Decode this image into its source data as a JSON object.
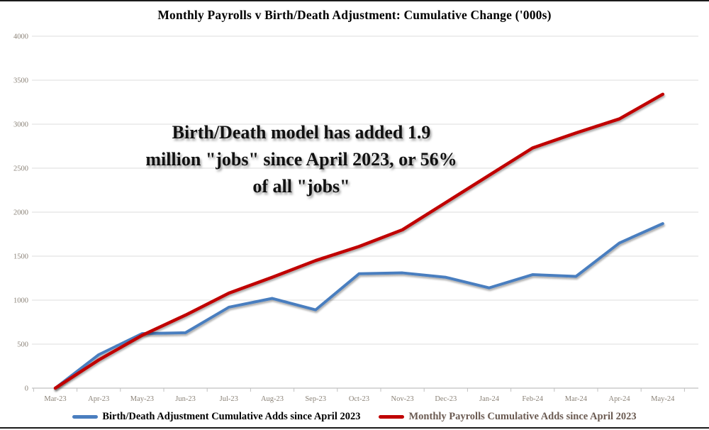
{
  "page": {
    "title": "Monthly Payrolls v Birth/Death Adjustment: Cumulative Change ('000s)"
  },
  "annotation": {
    "line1": "Birth/Death model has added 1.9",
    "line2": "million \"jobs\" since April 2023, or 56%",
    "line3": "of all \"jobs\""
  },
  "legend": {
    "items": [
      {
        "label": "Birth/Death Adjustment Cumulative Adds since April 2023",
        "color": "#4a7ebf"
      },
      {
        "label": "Monthly Payrolls Cumulative Adds since April 2023",
        "color": "#c00000"
      }
    ]
  },
  "chart_data": {
    "type": "line",
    "title": "Monthly Payrolls v Birth/Death Adjustment: Cumulative Change ('000s)",
    "categories": [
      "Mar-23",
      "Apr-23",
      "May-23",
      "Jun-23",
      "Jul-23",
      "Aug-23",
      "Sep-23",
      "Oct-23",
      "Nov-23",
      "Dec-23",
      "Jan-24",
      "Feb-24",
      "Mar-24",
      "Apr-24",
      "May-24"
    ],
    "series": [
      {
        "name": "Birth/Death Adjustment Cumulative Adds since April 2023",
        "color": "#4a7ebf",
        "values": [
          0,
          380,
          620,
          630,
          920,
          1020,
          890,
          1300,
          1310,
          1260,
          1140,
          1290,
          1270,
          1650,
          1870
        ]
      },
      {
        "name": "Monthly Payrolls Cumulative Adds since April 2023",
        "color": "#c00000",
        "values": [
          0,
          320,
          600,
          830,
          1080,
          1260,
          1450,
          1610,
          1800,
          2110,
          2420,
          2730,
          2900,
          3060,
          3340
        ]
      }
    ],
    "xlabel": "",
    "ylabel": "",
    "ylim": [
      0,
      4000
    ],
    "yticks": [
      0,
      500,
      1000,
      1500,
      2000,
      2500,
      3000,
      3500,
      4000
    ],
    "grid": true,
    "legend_position": "bottom",
    "annotation": "Birth/Death model has added 1.9 million \"jobs\" since April 2023, or 56% of all \"jobs\"",
    "colors": {
      "gridline": "#dcdcdc",
      "axis_line": "#c0c0c0",
      "tick_label": "#8b8378",
      "annotation_text": "#111111",
      "legend_label_1": "#000000",
      "legend_label_2": "#6b5b52"
    }
  }
}
